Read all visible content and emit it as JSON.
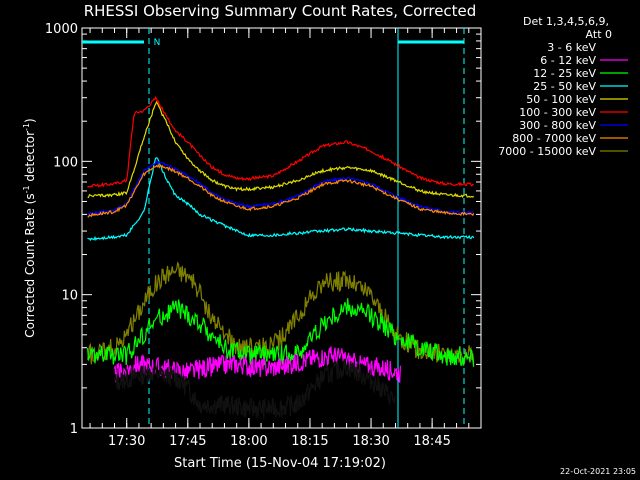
{
  "chart_data": {
    "type": "line",
    "title": "RHESSI Observing Summary Count Rates, Corrected",
    "xlabel": "Start Time (15-Nov-04 17:19:02)",
    "ylabel_main": "Corrected Count Rate (s",
    "ylabel_sup1": "-1",
    "ylabel_mid": " detector",
    "ylabel_sup2": "-1",
    "ylabel_end": ")",
    "y_scale": "log",
    "ylim": [
      1,
      1000
    ],
    "xlim_minutes": [
      17.317,
      18.95
    ],
    "x_ticks": [
      {
        "label": "17:30",
        "t": 17.5
      },
      {
        "label": "17:45",
        "t": 17.75
      },
      {
        "label": "18:00",
        "t": 18.0
      },
      {
        "label": "18:15",
        "t": 18.25
      },
      {
        "label": "18:30",
        "t": 18.5
      },
      {
        "label": "18:45",
        "t": 18.75
      }
    ],
    "y_ticks": [
      {
        "label": "1",
        "v": 1
      },
      {
        "label": "10",
        "v": 10
      },
      {
        "label": "100",
        "v": 100
      },
      {
        "label": "1000",
        "v": 1000
      }
    ],
    "legend_header": [
      "Det 1,3,4,5,6,9,",
      "Att 0"
    ],
    "series": [
      {
        "name": "3 - 6 keV",
        "color": "#000000",
        "x": [
          17.45,
          17.6,
          17.7,
          17.75,
          17.8,
          17.9,
          18.0,
          18.1,
          18.2,
          18.3,
          18.4,
          18.5,
          18.6
        ],
        "y": [
          2.2,
          2.6,
          2.4,
          2.0,
          1.5,
          1.5,
          1.4,
          1.4,
          1.5,
          2.4,
          2.9,
          2.3,
          1.6
        ]
      },
      {
        "name": "6 - 12 keV",
        "color": "#ff00ff",
        "x": [
          17.45,
          17.55,
          17.65,
          17.75,
          17.85,
          17.95,
          18.05,
          18.15,
          18.25,
          18.35,
          18.45,
          18.55,
          18.62
        ],
        "y": [
          2.5,
          3.0,
          2.8,
          2.6,
          2.9,
          3.0,
          2.8,
          2.9,
          3.3,
          3.5,
          3.0,
          2.8,
          2.6
        ]
      },
      {
        "name": "12 - 25 keV",
        "color": "#00ff00",
        "x": [
          17.34,
          17.5,
          17.6,
          17.7,
          17.8,
          17.9,
          18.0,
          18.1,
          18.2,
          18.3,
          18.4,
          18.5,
          18.6,
          18.7,
          18.8,
          18.92
        ],
        "y": [
          3.5,
          3.5,
          6.0,
          8.0,
          6.0,
          4.0,
          3.5,
          3.5,
          3.6,
          6.0,
          8.0,
          7.0,
          5.0,
          4.0,
          3.5,
          3.4
        ]
      },
      {
        "name": "25 - 50 keV",
        "color": "#00ffff",
        "x": [
          17.34,
          17.45,
          17.5,
          17.57,
          17.62,
          17.66,
          17.7,
          17.75,
          17.8,
          17.85,
          17.9,
          17.95,
          18.0,
          18.1,
          18.2,
          18.3,
          18.4,
          18.5,
          18.6,
          18.7,
          18.8,
          18.92
        ],
        "y": [
          26,
          27,
          28,
          42,
          110,
          75,
          55,
          48,
          40,
          36,
          33,
          30,
          28,
          28,
          29,
          30,
          31,
          30,
          29,
          28,
          27,
          27
        ]
      },
      {
        "name": "50 - 100 keV",
        "color": "#dddd00",
        "x": [
          17.34,
          17.45,
          17.5,
          17.57,
          17.62,
          17.66,
          17.7,
          17.75,
          17.8,
          17.85,
          17.9,
          17.95,
          18.0,
          18.1,
          18.2,
          18.3,
          18.4,
          18.5,
          18.6,
          18.7,
          18.8,
          18.92
        ],
        "y": [
          55,
          56,
          58,
          150,
          280,
          200,
          140,
          105,
          85,
          72,
          65,
          62,
          62,
          64,
          72,
          85,
          90,
          85,
          72,
          60,
          56,
          55
        ]
      },
      {
        "name": "100 - 300 keV",
        "color": "#ff0000",
        "x": [
          17.34,
          17.45,
          17.5,
          17.53,
          17.57,
          17.62,
          17.66,
          17.7,
          17.75,
          17.8,
          17.85,
          17.9,
          17.95,
          18.0,
          18.1,
          18.2,
          18.3,
          18.4,
          18.5,
          18.6,
          18.7,
          18.8,
          18.92
        ],
        "y": [
          65,
          68,
          72,
          230,
          240,
          300,
          220,
          170,
          140,
          110,
          90,
          80,
          75,
          74,
          78,
          100,
          130,
          140,
          120,
          95,
          75,
          68,
          67
        ]
      },
      {
        "name": "300 - 800 keV",
        "color": "#0000ff",
        "x": [
          17.34,
          17.45,
          17.5,
          17.57,
          17.62,
          17.66,
          17.7,
          17.75,
          17.8,
          17.85,
          17.9,
          17.95,
          18.0,
          18.1,
          18.2,
          18.3,
          18.4,
          18.5,
          18.6,
          18.7,
          18.8,
          18.92
        ],
        "y": [
          40,
          43,
          48,
          85,
          98,
          95,
          88,
          78,
          68,
          58,
          52,
          48,
          46,
          48,
          55,
          70,
          75,
          68,
          55,
          46,
          42,
          41
        ]
      },
      {
        "name": "800 - 7000 keV",
        "color": "#ff8800",
        "x": [
          17.34,
          17.45,
          17.5,
          17.57,
          17.62,
          17.66,
          17.7,
          17.75,
          17.8,
          17.85,
          17.9,
          17.95,
          18.0,
          18.1,
          18.2,
          18.3,
          18.4,
          18.5,
          18.6,
          18.7,
          18.8,
          18.92
        ],
        "y": [
          39,
          42,
          47,
          80,
          93,
          90,
          84,
          75,
          65,
          55,
          50,
          46,
          44,
          46,
          53,
          67,
          72,
          65,
          53,
          44,
          41,
          40
        ]
      },
      {
        "name": "7000 - 15000 keV",
        "color": "#808000",
        "x": [
          17.34,
          17.45,
          17.5,
          17.55,
          17.6,
          17.65,
          17.7,
          17.75,
          17.8,
          17.85,
          17.9,
          17.95,
          18.0,
          18.05,
          18.1,
          18.15,
          18.2,
          18.3,
          18.4,
          18.5,
          18.6,
          18.7,
          18.8,
          18.92
        ],
        "y": [
          3.5,
          4.0,
          5.0,
          7.5,
          11,
          14,
          15.5,
          14,
          10,
          6.5,
          5.0,
          4.2,
          4.0,
          4.0,
          4.2,
          5.0,
          7.0,
          12,
          13,
          10,
          5.0,
          3.8,
          3.6,
          3.5
        ]
      }
    ],
    "flags": [
      {
        "label": "N",
        "color": "#00ffff"
      }
    ],
    "footer_timestamp": "22-Oct-2021 23:05"
  }
}
